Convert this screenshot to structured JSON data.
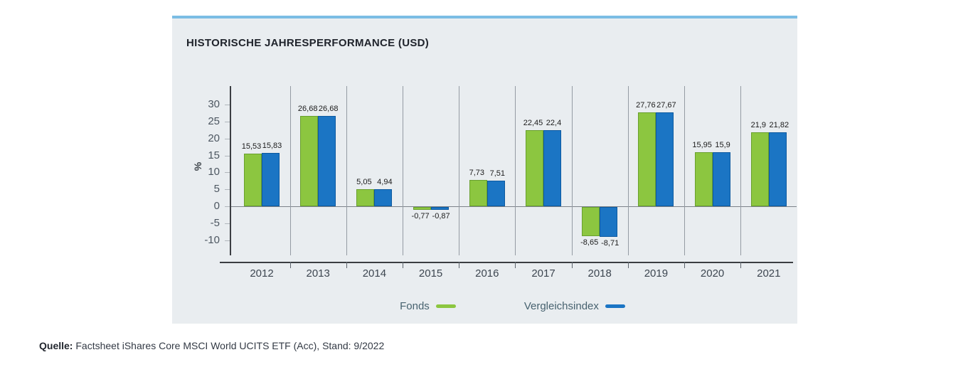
{
  "chart_data": {
    "type": "bar",
    "title": "HISTORISCHE JAHRESPERFORMANCE (USD)",
    "xlabel": "",
    "ylabel": "%",
    "categories": [
      "2012",
      "2013",
      "2014",
      "2015",
      "2016",
      "2017",
      "2018",
      "2019",
      "2020",
      "2021"
    ],
    "series": [
      {
        "name": "Fonds",
        "color": "#8cc640",
        "border_color": "#69a02e",
        "values": [
          15.53,
          26.68,
          5.05,
          -0.77,
          7.73,
          22.45,
          -8.65,
          27.76,
          15.95,
          21.9
        ],
        "labels": [
          "15,53",
          "26,68",
          "5,05",
          "-0,77",
          "7,73",
          "22,45",
          "-8,65",
          "27,76",
          "15,95",
          "21,9"
        ]
      },
      {
        "name": "Vergleichsindex",
        "color": "#1b75c4",
        "border_color": "#0d5aa0",
        "values": [
          15.83,
          26.68,
          4.94,
          -0.87,
          7.51,
          22.4,
          -8.71,
          27.67,
          15.9,
          21.82
        ],
        "labels": [
          "15,83",
          "26,68",
          "4,94",
          "-0,87",
          "7,51",
          "22,4",
          "-8,71",
          "27,67",
          "15,9",
          "21,82"
        ]
      }
    ],
    "yticks": [
      30,
      25,
      20,
      15,
      10,
      5,
      0,
      -5,
      -10
    ],
    "ylim": [
      -14.5,
      35.5
    ],
    "grid": "vertical category separators and zero baseline",
    "legend_position": "bottom"
  },
  "source": {
    "prefix": "Quelle:",
    "text": "Factsheet iShares Core MSCI World UCITS ETF (Acc), Stand: 9/2022"
  },
  "colors": {
    "panel_background": "#e9edf0",
    "panel_top_border": "#7bbde4",
    "axis": "#3b3e42",
    "separator": "#949ba3",
    "zero_line": "#7d838a",
    "tick": "#b0b6bb",
    "tick_label": "#4d5761",
    "year_label": "#3d4650",
    "legend_text": "#47626f",
    "value_label": "#1b1b1b"
  }
}
